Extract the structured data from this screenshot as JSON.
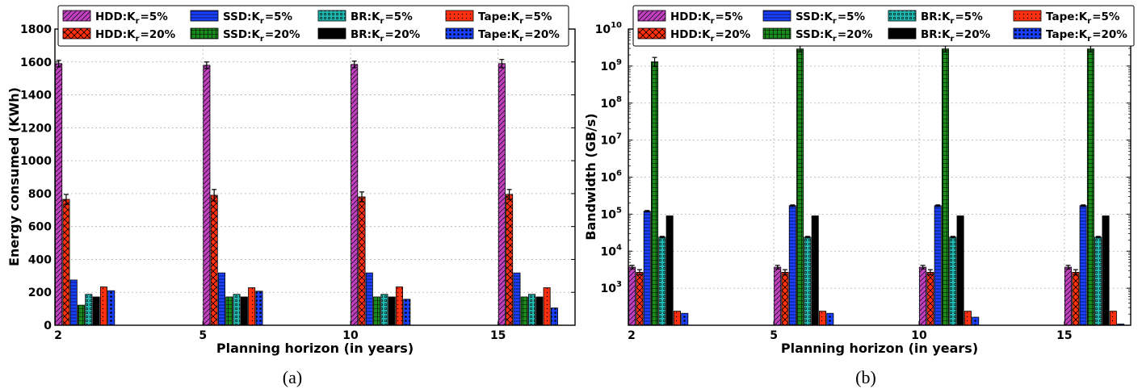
{
  "patterns": [
    {
      "id": "pat-diag",
      "kind": "diag"
    },
    {
      "id": "pat-cross",
      "kind": "cross"
    },
    {
      "id": "pat-hlines",
      "kind": "hlines"
    },
    {
      "id": "pat-grid",
      "kind": "grid"
    },
    {
      "id": "pat-circles",
      "kind": "circles"
    },
    {
      "id": "pat-solid",
      "kind": "solid"
    },
    {
      "id": "pat-dots",
      "kind": "dots"
    },
    {
      "id": "pat-bigdots",
      "kind": "bigdots"
    }
  ],
  "series_styles": [
    {
      "key": "hdd5",
      "color": "#c040c0",
      "pattern": "diag"
    },
    {
      "key": "hdd20",
      "color": "#ff3010",
      "pattern": "cross"
    },
    {
      "key": "ssd5",
      "color": "#1a40ff",
      "pattern": "hlines"
    },
    {
      "key": "ssd20",
      "color": "#1a8a1a",
      "pattern": "grid"
    },
    {
      "key": "br5",
      "color": "#20b8b0",
      "pattern": "circles"
    },
    {
      "key": "br20",
      "color": "#000000",
      "pattern": "solid"
    },
    {
      "key": "tape5",
      "color": "#ff3010",
      "pattern": "dots"
    },
    {
      "key": "tape20",
      "color": "#1a40ff",
      "pattern": "bigdots"
    }
  ],
  "legend_entries": [
    {
      "key": "hdd5",
      "prefix": "HDD:K",
      "sub": "r",
      "suffix": "=5%"
    },
    {
      "key": "ssd5",
      "prefix": "SSD:K",
      "sub": "r",
      "suffix": "=5%"
    },
    {
      "key": "br5",
      "prefix": "BR:K",
      "sub": "r",
      "suffix": "=5%"
    },
    {
      "key": "tape5",
      "prefix": "Tape:K",
      "sub": "r",
      "suffix": "=5%"
    },
    {
      "key": "hdd20",
      "prefix": "HDD:K",
      "sub": "r",
      "suffix": "=20%"
    },
    {
      "key": "ssd20",
      "prefix": "SSD:K",
      "sub": "r",
      "suffix": "=20%"
    },
    {
      "key": "br20",
      "prefix": "BR:K",
      "sub": "r",
      "suffix": "=20%"
    },
    {
      "key": "tape20",
      "prefix": "Tape:K",
      "sub": "r",
      "suffix": "=20%"
    }
  ],
  "chart_data": [
    {
      "id": "a",
      "type": "bar",
      "caption": "(a)",
      "title": "",
      "xlabel": "Planning horizon (in years)",
      "ylabel": "Energy consumed (KWh)",
      "categories": [
        "2",
        "5",
        "10",
        "15"
      ],
      "ylim": [
        0,
        1800
      ],
      "yticks": [
        0,
        200,
        400,
        600,
        800,
        1000,
        1200,
        1400,
        1600,
        1800
      ],
      "log_scale": false,
      "grid": true,
      "legend_position": "top",
      "series": [
        {
          "key": "hdd5",
          "name": "HDD:Kr=5%",
          "values": [
            1590,
            1580,
            1585,
            1590
          ],
          "errors": [
            20,
            20,
            20,
            25
          ]
        },
        {
          "key": "hdd20",
          "name": "HDD:Kr=20%",
          "values": [
            765,
            790,
            780,
            795
          ],
          "errors": [
            30,
            35,
            30,
            30
          ]
        },
        {
          "key": "ssd5",
          "name": "SSD:Kr=5%",
          "values": [
            275,
            318,
            318,
            318
          ],
          "errors": [
            0,
            0,
            0,
            0
          ]
        },
        {
          "key": "ssd20",
          "name": "SSD:Kr=20%",
          "values": [
            122,
            172,
            172,
            172
          ],
          "errors": [
            0,
            0,
            0,
            0
          ]
        },
        {
          "key": "br5",
          "name": "BR:Kr=5%",
          "values": [
            188,
            188,
            188,
            188
          ],
          "errors": [
            0,
            0,
            0,
            0
          ]
        },
        {
          "key": "br20",
          "name": "BR:Kr=20%",
          "values": [
            172,
            172,
            172,
            172
          ],
          "errors": [
            0,
            0,
            0,
            0
          ]
        },
        {
          "key": "tape5",
          "name": "Tape:Kr=5%",
          "values": [
            233,
            228,
            233,
            228
          ],
          "errors": [
            0,
            0,
            0,
            0
          ]
        },
        {
          "key": "tape20",
          "name": "Tape:Kr=20%",
          "values": [
            210,
            207,
            158,
            105
          ],
          "errors": [
            0,
            0,
            0,
            0
          ]
        }
      ]
    },
    {
      "id": "b",
      "type": "bar",
      "caption": "(b)",
      "title": "",
      "xlabel": "Planning horizon (in years)",
      "ylabel": "Bandwidth (GB/s)",
      "categories": [
        "2",
        "5",
        "10",
        "15"
      ],
      "ylim": [
        100,
        10000000000
      ],
      "yticks": [
        1000,
        10000,
        100000,
        1000000,
        10000000,
        100000000,
        1000000000,
        10000000000
      ],
      "ytick_exponents": [
        "3",
        "4",
        "5",
        "6",
        "7",
        "8",
        "9",
        "10"
      ],
      "ytick_base": "10",
      "log_scale": true,
      "grid": true,
      "legend_position": "top",
      "series": [
        {
          "key": "hdd5",
          "name": "HDD:Kr=5%",
          "values": [
            3700,
            3700,
            3700,
            3700
          ],
          "errors": [
            0.05,
            0.05,
            0.05,
            0.05
          ]
        },
        {
          "key": "hdd20",
          "name": "HDD:Kr=20%",
          "values": [
            2700,
            2700,
            2700,
            2700
          ],
          "errors": [
            0.07,
            0.07,
            0.07,
            0.07
          ]
        },
        {
          "key": "ssd5",
          "name": "SSD:Kr=5%",
          "values": [
            120000,
            170000,
            170000,
            170000
          ],
          "errors": [
            0.02,
            0.02,
            0.02,
            0.02
          ]
        },
        {
          "key": "ssd20",
          "name": "SSD:Kr=20%",
          "values": [
            1300000000,
            2900000000,
            2900000000,
            2900000000
          ],
          "errors": [
            0.12,
            0.08,
            0.08,
            0.08
          ]
        },
        {
          "key": "br5",
          "name": "BR:Kr=5%",
          "values": [
            24000,
            24000,
            24000,
            24000
          ],
          "errors": [
            0.02,
            0.02,
            0.02,
            0.02
          ]
        },
        {
          "key": "br20",
          "name": "BR:Kr=20%",
          "values": [
            90000,
            90000,
            90000,
            90000
          ],
          "errors": [
            0,
            0,
            0,
            0
          ]
        },
        {
          "key": "tape5",
          "name": "Tape:Kr=5%",
          "values": [
            240,
            240,
            240,
            240
          ],
          "errors": [
            0,
            0,
            0,
            0
          ]
        },
        {
          "key": "tape20",
          "name": "Tape:Kr=20%",
          "values": [
            210,
            210,
            165,
            108
          ],
          "errors": [
            0,
            0,
            0,
            0
          ]
        }
      ]
    }
  ]
}
